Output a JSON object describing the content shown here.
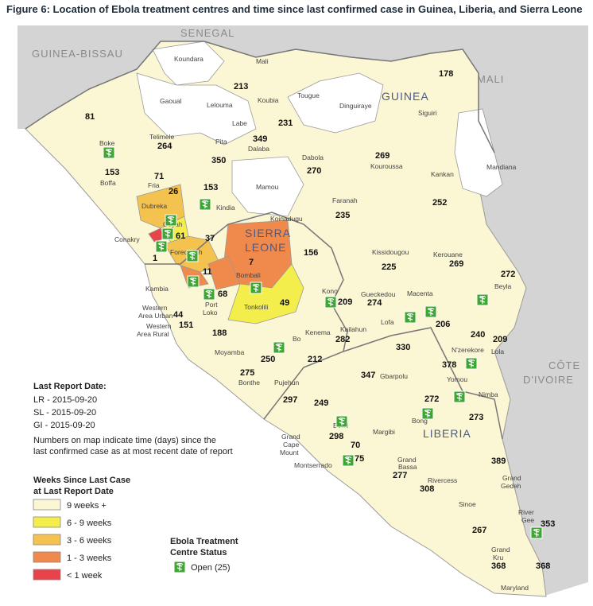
{
  "title": "Figure 6: Location of Ebola treatment centres and time since last confirmed case in Guinea, Liberia, and Sierra Leone",
  "colors": {
    "sea": "#ffffff",
    "land_other": "#d4d4d4",
    "weeks_9_plus": "#fbf6d3",
    "weeks_6_9": "#f4ee4c",
    "weeks_3_6": "#f3c24f",
    "weeks_1_3": "#f0894c",
    "weeks_lt1": "#e8434a",
    "outside": "#ffffff",
    "etc_green": "#3fa535",
    "country_label": "#8a8a8a",
    "focus_label": "#4b5a84"
  },
  "countries": {
    "senegal": "SENEGAL",
    "guinea_bissau": "GUINEA-BISSAU",
    "mali": "MALI",
    "guinea": "GUINEA",
    "sierra_leone_1": "SIERRA",
    "sierra_leone_2": "LEONE",
    "liberia": "LIBERIA",
    "cote_1": "CÔTE",
    "cote_2": "D'IVOIRE"
  },
  "regions": [
    {
      "id": "koundara",
      "label": "Koundara"
    },
    {
      "id": "mali-r",
      "label": "Mali"
    },
    {
      "id": "gaoual",
      "label": "Gaoual"
    },
    {
      "id": "lelouma",
      "label": "Lelouma"
    },
    {
      "id": "koubia",
      "label": "Koubia"
    },
    {
      "id": "tougue",
      "label": "Tougue"
    },
    {
      "id": "dinguiraye",
      "label": "Dinguiraye"
    },
    {
      "id": "siguiri",
      "label": "Siguiri"
    },
    {
      "id": "labe",
      "label": "Labe"
    },
    {
      "id": "boke",
      "label": "Boke"
    },
    {
      "id": "telimele",
      "label": "Telimele"
    },
    {
      "id": "pita",
      "label": "Pita"
    },
    {
      "id": "dalaba",
      "label": "Dalaba"
    },
    {
      "id": "dabola",
      "label": "Dabola"
    },
    {
      "id": "kouroussa",
      "label": "Kouroussa"
    },
    {
      "id": "kankan",
      "label": "Kankan"
    },
    {
      "id": "mandiana",
      "label": "Mandiana"
    },
    {
      "id": "boffa",
      "label": "Boffa"
    },
    {
      "id": "fria",
      "label": "Fria"
    },
    {
      "id": "mamou",
      "label": "Mamou"
    },
    {
      "id": "faranah",
      "label": "Faranah"
    },
    {
      "id": "dubreka",
      "label": "Dubreka"
    },
    {
      "id": "kindia",
      "label": "Kindia"
    },
    {
      "id": "koinadugu",
      "label": "Koinadugu"
    },
    {
      "id": "conakry",
      "label": "Conakry"
    },
    {
      "id": "coyah",
      "label": "Coyah"
    },
    {
      "id": "forecariah",
      "label": "Forecariah"
    },
    {
      "id": "kissidougou",
      "label": "Kissidougou"
    },
    {
      "id": "kerouane",
      "label": "Kerouane"
    },
    {
      "id": "bombali",
      "label": "Bombali"
    },
    {
      "id": "beyla",
      "label": "Beyla"
    },
    {
      "id": "kambia",
      "label": "Kambia"
    },
    {
      "id": "western-urban-1",
      "label": "Western"
    },
    {
      "id": "western-urban-2",
      "label": "Area Urban"
    },
    {
      "id": "port-loko-1",
      "label": "Port"
    },
    {
      "id": "port-loko-2",
      "label": "Loko"
    },
    {
      "id": "tonkolili",
      "label": "Tonkolili"
    },
    {
      "id": "kono",
      "label": "Kono"
    },
    {
      "id": "gueckedou",
      "label": "Gueckedou"
    },
    {
      "id": "macenta",
      "label": "Macenta"
    },
    {
      "id": "western-rural-1",
      "label": "Western"
    },
    {
      "id": "western-rural-2",
      "label": "Area Rural"
    },
    {
      "id": "kenema",
      "label": "Kenema"
    },
    {
      "id": "kailahun",
      "label": "Kailahun"
    },
    {
      "id": "lofa",
      "label": "Lofa"
    },
    {
      "id": "bo",
      "label": "Bo"
    },
    {
      "id": "nzerekore",
      "label": "N'zerekore"
    },
    {
      "id": "lola",
      "label": "Lola"
    },
    {
      "id": "moyamba",
      "label": "Moyamba"
    },
    {
      "id": "gbarpolu",
      "label": "Gbarpolu"
    },
    {
      "id": "yomou",
      "label": "Yomou"
    },
    {
      "id": "bonthe",
      "label": "Bonthe"
    },
    {
      "id": "pujehun",
      "label": "Pujehun"
    },
    {
      "id": "nimba",
      "label": "Nimba"
    },
    {
      "id": "bong",
      "label": "Bong"
    },
    {
      "id": "bomi",
      "label": "Bomi"
    },
    {
      "id": "grand-cape-1",
      "label": "Grand"
    },
    {
      "id": "grand-cape-2",
      "label": "Cape"
    },
    {
      "id": "grand-cape-3",
      "label": "Mount"
    },
    {
      "id": "margibi",
      "label": "Margibi"
    },
    {
      "id": "montserrado",
      "label": "Montserrado"
    },
    {
      "id": "grand-bassa-1",
      "label": "Grand"
    },
    {
      "id": "grand-bassa-2",
      "label": "Bassa"
    },
    {
      "id": "rivercess",
      "label": "Rivercess"
    },
    {
      "id": "grand-gedeh-1",
      "label": "Grand"
    },
    {
      "id": "grand-gedeh-2",
      "label": "Gedeh"
    },
    {
      "id": "sinoe",
      "label": "Sinoe"
    },
    {
      "id": "river-gee-1",
      "label": "River"
    },
    {
      "id": "river-gee-2",
      "label": "Gee"
    },
    {
      "id": "grand-kru-1",
      "label": "Grand"
    },
    {
      "id": "grand-kru-2",
      "label": "Kru"
    },
    {
      "id": "maryland",
      "label": "Maryland"
    }
  ],
  "days": [
    {
      "id": "d-178",
      "value": "178"
    },
    {
      "id": "d-213",
      "value": "213"
    },
    {
      "id": "d-81",
      "value": "81"
    },
    {
      "id": "d-231",
      "value": "231"
    },
    {
      "id": "d-264",
      "value": "264"
    },
    {
      "id": "d-349",
      "value": "349"
    },
    {
      "id": "d-350",
      "value": "350"
    },
    {
      "id": "d-269-k",
      "value": "269"
    },
    {
      "id": "d-270",
      "value": "270"
    },
    {
      "id": "d-153-boffa",
      "value": "153"
    },
    {
      "id": "d-71",
      "value": "71"
    },
    {
      "id": "d-26",
      "value": "26"
    },
    {
      "id": "d-153-kindia",
      "value": "153"
    },
    {
      "id": "d-235",
      "value": "235"
    },
    {
      "id": "d-252",
      "value": "252"
    },
    {
      "id": "d-61",
      "value": "61"
    },
    {
      "id": "d-37",
      "value": "37"
    },
    {
      "id": "d-1",
      "value": "1"
    },
    {
      "id": "d-156",
      "value": "156"
    },
    {
      "id": "d-7",
      "value": "7"
    },
    {
      "id": "d-225",
      "value": "225"
    },
    {
      "id": "d-269-ker",
      "value": "269"
    },
    {
      "id": "d-272-beyla",
      "value": "272"
    },
    {
      "id": "d-11",
      "value": "11"
    },
    {
      "id": "d-68",
      "value": "68"
    },
    {
      "id": "d-49",
      "value": "49"
    },
    {
      "id": "d-209-kono",
      "value": "209"
    },
    {
      "id": "d-274",
      "value": "274"
    },
    {
      "id": "d-44",
      "value": "44"
    },
    {
      "id": "d-151",
      "value": "151"
    },
    {
      "id": "d-206",
      "value": "206"
    },
    {
      "id": "d-188",
      "value": "188"
    },
    {
      "id": "d-282",
      "value": "282"
    },
    {
      "id": "d-240",
      "value": "240"
    },
    {
      "id": "d-209-lola",
      "value": "209"
    },
    {
      "id": "d-330",
      "value": "330"
    },
    {
      "id": "d-250",
      "value": "250"
    },
    {
      "id": "d-212",
      "value": "212"
    },
    {
      "id": "d-378",
      "value": "378"
    },
    {
      "id": "d-275",
      "value": "275"
    },
    {
      "id": "d-347",
      "value": "347"
    },
    {
      "id": "d-297",
      "value": "297"
    },
    {
      "id": "d-272-bong",
      "value": "272"
    },
    {
      "id": "d-249",
      "value": "249"
    },
    {
      "id": "d-273",
      "value": "273"
    },
    {
      "id": "d-298",
      "value": "298"
    },
    {
      "id": "d-70",
      "value": "70"
    },
    {
      "id": "d-75",
      "value": "75"
    },
    {
      "id": "d-389",
      "value": "389"
    },
    {
      "id": "d-277",
      "value": "277"
    },
    {
      "id": "d-308",
      "value": "308"
    },
    {
      "id": "d-353",
      "value": "353"
    },
    {
      "id": "d-267",
      "value": "267"
    },
    {
      "id": "d-368-kru",
      "value": "368"
    },
    {
      "id": "d-368-mar",
      "value": "368"
    }
  ],
  "etc_markers": [
    {
      "id": "etc-boke"
    },
    {
      "id": "etc-kindia"
    },
    {
      "id": "etc-coyah"
    },
    {
      "id": "etc-conakry"
    },
    {
      "id": "etc-forecariah"
    },
    {
      "id": "etc-bombali"
    },
    {
      "id": "etc-kambia"
    },
    {
      "id": "etc-portloko"
    },
    {
      "id": "etc-kono"
    },
    {
      "id": "etc-gueckedou"
    },
    {
      "id": "etc-macenta"
    },
    {
      "id": "etc-beyla"
    },
    {
      "id": "etc-bo"
    },
    {
      "id": "etc-kenema"
    },
    {
      "id": "etc-nzerekore"
    },
    {
      "id": "etc-nimba"
    },
    {
      "id": "etc-bong"
    },
    {
      "id": "etc-bomi"
    },
    {
      "id": "etc-montserrado"
    },
    {
      "id": "etc-rivergee"
    }
  ],
  "legend": {
    "report_date_title": "Last Report Date:",
    "report_lr": "LR - 2015-09-20",
    "report_sl": "SL - 2015-09-20",
    "report_gi": "GI - 2015-09-20",
    "note_1": "Numbers on map indicate time (days) since the",
    "note_2": "last confirmed case as at most recent date of report",
    "weeks_title_1": "Weeks Since Last Case",
    "weeks_title_2": "at Last Report Date",
    "weeks_items": [
      {
        "label": "9 weeks +"
      },
      {
        "label": "6 - 9 weeks"
      },
      {
        "label": "3 - 6 weeks"
      },
      {
        "label": "1 - 3 weeks"
      },
      {
        "label": "< 1 week"
      }
    ],
    "etc_title_1": "Ebola Treatment",
    "etc_title_2": "Centre Status",
    "etc_open": "Open (25)"
  }
}
